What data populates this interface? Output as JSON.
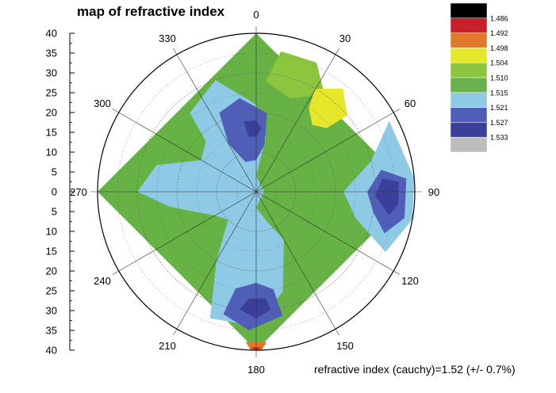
{
  "chart_data": {
    "type": "heatmap",
    "subtype": "polar-contour",
    "title": "map of refractive index",
    "note": "refractive index (cauchy)=1.52 (+/- 0.7%)",
    "radial_axis": {
      "range": [
        0,
        40
      ],
      "ticks": [
        40,
        35,
        30,
        25,
        20,
        15,
        10,
        5,
        0,
        5,
        10,
        15,
        20,
        25,
        30,
        35,
        40
      ]
    },
    "angular_axis": {
      "labels": [
        "0",
        "30",
        "60",
        "90",
        "120",
        "150",
        "180",
        "210",
        "240",
        "270",
        "300",
        "330"
      ],
      "degrees": [
        0,
        30,
        60,
        90,
        120,
        150,
        180,
        210,
        240,
        270,
        300,
        330
      ]
    },
    "grid": true,
    "legend": {
      "placement": "top-right",
      "levels": [
        "1.486",
        "1.492",
        "1.498",
        "1.504",
        "1.510",
        "1.515",
        "1.521",
        "1.527",
        "1.533"
      ],
      "colors": [
        "#000000",
        "#c8202a",
        "#e07a2a",
        "#e6e62a",
        "#8cc63f",
        "#6ab04c",
        "#8ecae6",
        "#4f5fb8",
        "#3a3f9a",
        "#bdbdbd"
      ]
    },
    "regions": [
      {
        "level": "1.504",
        "color": "#66b245",
        "points": [
          [
            0,
            40
          ],
          [
            90,
            40
          ],
          [
            180,
            40
          ],
          [
            270,
            40
          ]
        ]
      },
      {
        "level": "1.510",
        "color": "#8cc63f",
        "points": [
          [
            10,
            36
          ],
          [
            25,
            36
          ],
          [
            35,
            30
          ],
          [
            20,
            25
          ],
          [
            5,
            28
          ]
        ]
      },
      {
        "level": "1.515",
        "color": "#8ecae6",
        "points": [
          [
            320,
            26
          ],
          [
            340,
            30
          ],
          [
            0,
            22
          ],
          [
            10,
            14
          ],
          [
            0,
            4
          ],
          [
            90,
            2
          ],
          [
            180,
            4
          ],
          [
            160,
            8
          ],
          [
            150,
            14
          ],
          [
            165,
            26
          ],
          [
            180,
            34
          ],
          [
            200,
            34
          ],
          [
            210,
            20
          ],
          [
            225,
            10
          ],
          [
            240,
            12
          ],
          [
            260,
            22
          ],
          [
            270,
            30
          ],
          [
            285,
            26
          ],
          [
            300,
            16
          ],
          [
            315,
            18
          ]
        ]
      },
      {
        "level": "1.515",
        "color": "#8ecae6",
        "points": [
          [
            62,
            38
          ],
          [
            75,
            30
          ],
          [
            90,
            22
          ],
          [
            105,
            26
          ],
          [
            115,
            36
          ],
          [
            100,
            40
          ],
          [
            85,
            40
          ]
        ]
      },
      {
        "level": "1.498",
        "color": "#e6e62a",
        "points": [
          [
            30,
            30
          ],
          [
            40,
            34
          ],
          [
            50,
            30
          ],
          [
            48,
            24
          ],
          [
            40,
            22
          ],
          [
            32,
            25
          ]
        ]
      },
      {
        "level": "1.521",
        "color": "#4f5fb8",
        "points": [
          [
            335,
            22
          ],
          [
            350,
            24
          ],
          [
            8,
            20
          ],
          [
            10,
            12
          ],
          [
            0,
            8
          ],
          [
            340,
            8
          ],
          [
            330,
            14
          ]
        ]
      },
      {
        "level": "1.521",
        "color": "#4f5fb8",
        "points": [
          [
            80,
            32
          ],
          [
            90,
            28
          ],
          [
            100,
            30
          ],
          [
            108,
            34
          ],
          [
            100,
            38
          ],
          [
            85,
            38
          ]
        ]
      },
      {
        "level": "1.521",
        "color": "#4f5fb8",
        "points": [
          [
            170,
            25
          ],
          [
            180,
            23
          ],
          [
            192,
            25
          ],
          [
            195,
            32
          ],
          [
            183,
            35
          ],
          [
            168,
            32
          ]
        ]
      },
      {
        "level": "1.527",
        "color": "#3a3f9a",
        "points": [
          [
            350,
            18
          ],
          [
            0,
            18
          ],
          [
            5,
            16
          ],
          [
            0,
            14
          ],
          [
            352,
            14
          ]
        ]
      },
      {
        "level": "1.527",
        "color": "#3a3f9a",
        "points": [
          [
            84,
            32
          ],
          [
            92,
            30
          ],
          [
            100,
            34
          ],
          [
            95,
            36
          ],
          [
            86,
            36
          ]
        ]
      },
      {
        "level": "1.527",
        "color": "#3a3f9a",
        "points": [
          [
            175,
            27
          ],
          [
            184,
            27
          ],
          [
            188,
            30
          ],
          [
            180,
            32
          ],
          [
            173,
            30
          ]
        ]
      },
      {
        "level": "1.492",
        "color": "#e07a2a",
        "points": [
          [
            176,
            38
          ],
          [
            184,
            38
          ],
          [
            182,
            40
          ],
          [
            178,
            40
          ]
        ]
      },
      {
        "level": "1.486",
        "color": "#c8202a",
        "points": [
          [
            178,
            39.3
          ],
          [
            182,
            39.3
          ],
          [
            180,
            40
          ]
        ]
      }
    ]
  }
}
